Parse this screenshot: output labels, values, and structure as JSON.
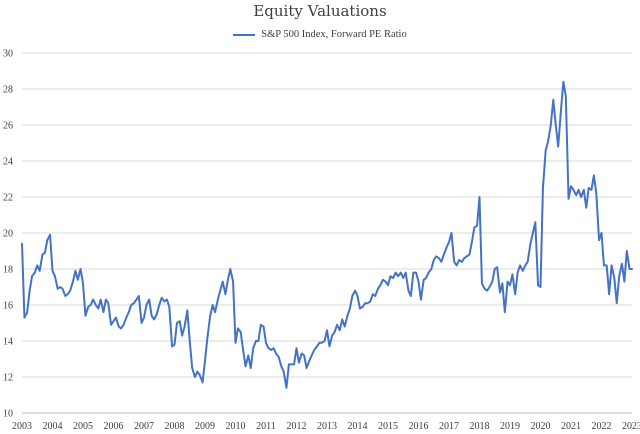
{
  "chart_data": {
    "type": "line",
    "title": "Equity Valuations",
    "xlabel": "",
    "ylabel": "",
    "ylim": [
      10,
      30
    ],
    "yticks": [
      10,
      12,
      14,
      16,
      18,
      20,
      22,
      24,
      26,
      28,
      30
    ],
    "xlim": [
      2003,
      2023
    ],
    "xticks": [
      "2003",
      "2004",
      "2005",
      "2006",
      "2007",
      "2008",
      "2009",
      "2010",
      "2011",
      "2012",
      "2013",
      "2014",
      "2015",
      "2016",
      "2017",
      "2018",
      "2019",
      "2020",
      "2021",
      "2022",
      "2023"
    ],
    "grid": "horizontal",
    "legend_position": "top-center",
    "series": [
      {
        "name": "S&P 500 Index, Forward PE Ratio",
        "color": "#4472c4",
        "x": [
          2003.0,
          2003.08,
          2003.17,
          2003.25,
          2003.33,
          2003.42,
          2003.5,
          2003.58,
          2003.67,
          2003.75,
          2003.83,
          2003.92,
          2004.0,
          2004.08,
          2004.17,
          2004.25,
          2004.33,
          2004.42,
          2004.5,
          2004.58,
          2004.67,
          2004.75,
          2004.83,
          2004.92,
          2005.0,
          2005.08,
          2005.17,
          2005.25,
          2005.33,
          2005.42,
          2005.5,
          2005.58,
          2005.67,
          2005.75,
          2005.83,
          2005.92,
          2006.0,
          2006.08,
          2006.17,
          2006.25,
          2006.33,
          2006.42,
          2006.5,
          2006.58,
          2006.67,
          2006.75,
          2006.83,
          2006.92,
          2007.0,
          2007.08,
          2007.17,
          2007.25,
          2007.33,
          2007.42,
          2007.5,
          2007.58,
          2007.67,
          2007.75,
          2007.83,
          2007.92,
          2008.0,
          2008.08,
          2008.17,
          2008.25,
          2008.33,
          2008.42,
          2008.5,
          2008.58,
          2008.67,
          2008.75,
          2008.83,
          2008.92,
          2009.0,
          2009.08,
          2009.17,
          2009.25,
          2009.33,
          2009.42,
          2009.5,
          2009.58,
          2009.67,
          2009.75,
          2009.83,
          2009.92,
          2010.0,
          2010.08,
          2010.17,
          2010.25,
          2010.33,
          2010.42,
          2010.5,
          2010.58,
          2010.67,
          2010.75,
          2010.83,
          2010.92,
          2011.0,
          2011.08,
          2011.17,
          2011.25,
          2011.33,
          2011.42,
          2011.5,
          2011.58,
          2011.67,
          2011.75,
          2011.83,
          2011.92,
          2012.0,
          2012.08,
          2012.17,
          2012.25,
          2012.33,
          2012.42,
          2012.5,
          2012.58,
          2012.67,
          2012.75,
          2012.83,
          2012.92,
          2013.0,
          2013.08,
          2013.17,
          2013.25,
          2013.33,
          2013.42,
          2013.5,
          2013.58,
          2013.67,
          2013.75,
          2013.83,
          2013.92,
          2014.0,
          2014.08,
          2014.17,
          2014.25,
          2014.33,
          2014.42,
          2014.5,
          2014.58,
          2014.67,
          2014.75,
          2014.83,
          2014.92,
          2015.0,
          2015.08,
          2015.17,
          2015.25,
          2015.33,
          2015.42,
          2015.5,
          2015.58,
          2015.67,
          2015.75,
          2015.83,
          2015.92,
          2016.0,
          2016.08,
          2016.17,
          2016.25,
          2016.33,
          2016.42,
          2016.5,
          2016.58,
          2016.67,
          2016.75,
          2016.83,
          2016.92,
          2017.0,
          2017.08,
          2017.17,
          2017.25,
          2017.33,
          2017.42,
          2017.5,
          2017.58,
          2017.67,
          2017.75,
          2017.83,
          2017.92,
          2018.0,
          2018.08,
          2018.17,
          2018.25,
          2018.33,
          2018.42,
          2018.5,
          2018.58,
          2018.67,
          2018.75,
          2018.83,
          2018.92,
          2019.0,
          2019.08,
          2019.17,
          2019.25,
          2019.33,
          2019.42,
          2019.5,
          2019.58,
          2019.67,
          2019.75,
          2019.83,
          2019.92,
          2020.0,
          2020.08,
          2020.17,
          2020.25,
          2020.33,
          2020.42,
          2020.5,
          2020.58,
          2020.67,
          2020.75,
          2020.83,
          2020.92,
          2021.0,
          2021.08,
          2021.17,
          2021.25,
          2021.33,
          2021.42,
          2021.5,
          2021.58,
          2021.67,
          2021.75,
          2021.83,
          2021.92,
          2022.0,
          2022.08,
          2022.17,
          2022.25,
          2022.33,
          2022.42,
          2022.5,
          2022.58,
          2022.67,
          2022.75,
          2022.83,
          2022.92,
          2023.0
        ],
        "values": [
          19.4,
          15.3,
          15.6,
          16.8,
          17.6,
          17.8,
          18.2,
          17.9,
          18.8,
          18.9,
          19.6,
          19.9,
          17.9,
          17.6,
          16.9,
          17.0,
          16.9,
          16.5,
          16.6,
          16.8,
          17.3,
          17.9,
          17.4,
          18.0,
          17.2,
          15.4,
          15.9,
          16.0,
          16.3,
          16.0,
          15.8,
          16.3,
          15.6,
          16.3,
          16.1,
          14.9,
          15.1,
          15.3,
          14.8,
          14.7,
          14.9,
          15.3,
          15.6,
          16.0,
          16.1,
          16.3,
          16.5,
          15.0,
          15.3,
          16.0,
          16.3,
          15.4,
          15.2,
          15.5,
          16.0,
          16.4,
          16.2,
          16.3,
          15.9,
          13.7,
          13.8,
          15.0,
          15.1,
          14.3,
          14.8,
          15.7,
          14.0,
          12.5,
          12.0,
          12.3,
          12.1,
          11.7,
          12.9,
          14.2,
          15.4,
          16.0,
          15.6,
          16.3,
          16.8,
          17.3,
          16.6,
          17.4,
          18.0,
          17.3,
          13.9,
          14.7,
          14.5,
          13.5,
          12.6,
          13.2,
          12.5,
          13.6,
          14.0,
          14.0,
          14.9,
          14.8,
          13.9,
          13.6,
          13.5,
          13.6,
          13.3,
          13.1,
          12.6,
          12.3,
          11.4,
          12.7,
          12.7,
          12.7,
          13.6,
          12.8,
          13.3,
          13.2,
          12.5,
          12.9,
          13.2,
          13.5,
          13.7,
          13.9,
          13.9,
          14.0,
          14.6,
          13.7,
          14.3,
          14.5,
          14.9,
          14.6,
          15.2,
          14.8,
          15.4,
          15.8,
          16.5,
          16.8,
          16.5,
          15.8,
          15.9,
          16.1,
          16.1,
          16.2,
          16.6,
          16.5,
          16.9,
          17.1,
          17.4,
          17.3,
          17.1,
          17.6,
          17.5,
          17.8,
          17.6,
          17.8,
          17.5,
          17.8,
          16.8,
          16.5,
          17.8,
          17.8,
          17.3,
          16.3,
          17.4,
          17.5,
          17.8,
          18.0,
          18.5,
          18.7,
          18.6,
          18.4,
          18.8,
          19.2,
          19.5,
          20.0,
          18.4,
          18.2,
          18.5,
          18.4,
          18.6,
          18.7,
          18.8,
          19.5,
          20.3,
          20.4,
          22.0,
          17.2,
          16.9,
          16.8,
          17.0,
          17.3,
          18.0,
          18.1,
          16.7,
          17.2,
          15.6,
          17.3,
          17.1,
          17.7,
          16.6,
          17.8,
          18.2,
          17.9,
          18.2,
          18.4,
          19.4,
          20.0,
          20.6,
          17.1,
          17.0,
          22.5,
          24.6,
          25.1,
          25.9,
          27.4,
          26.0,
          24.8,
          26.8,
          28.4,
          27.6,
          21.9,
          22.6,
          22.4,
          22.1,
          22.4,
          22.0,
          22.4,
          21.4,
          22.5,
          22.4,
          23.2,
          22.2,
          19.6,
          20.0,
          18.2,
          18.2,
          16.6,
          18.2,
          17.5,
          16.1,
          17.6,
          18.3,
          17.3,
          19.0,
          18.0,
          18.0
        ]
      }
    ]
  }
}
